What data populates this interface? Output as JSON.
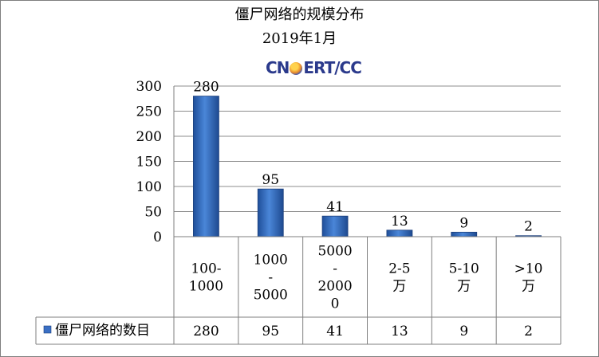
{
  "chart_data": {
    "type": "bar",
    "title": "僵尸网络的规模分布",
    "subtitle": "2019年1月",
    "logo_text": "CNCERT/CC",
    "categories": [
      [
        "100-",
        "1000"
      ],
      [
        "1000",
        "-",
        "5000"
      ],
      [
        "5000",
        "-",
        "2000",
        "0"
      ],
      [
        "2-5",
        "万"
      ],
      [
        "5-10",
        "万"
      ],
      [
        ">10",
        "万"
      ]
    ],
    "series": [
      {
        "name": "僵尸网络的数目",
        "values": [
          280,
          95,
          41,
          13,
          9,
          2
        ],
        "color": "#3a6fc4"
      }
    ],
    "ylim": [
      0,
      300
    ],
    "yticks": [
      0,
      50,
      100,
      150,
      200,
      250,
      300
    ],
    "grid": true,
    "data_table": true
  }
}
